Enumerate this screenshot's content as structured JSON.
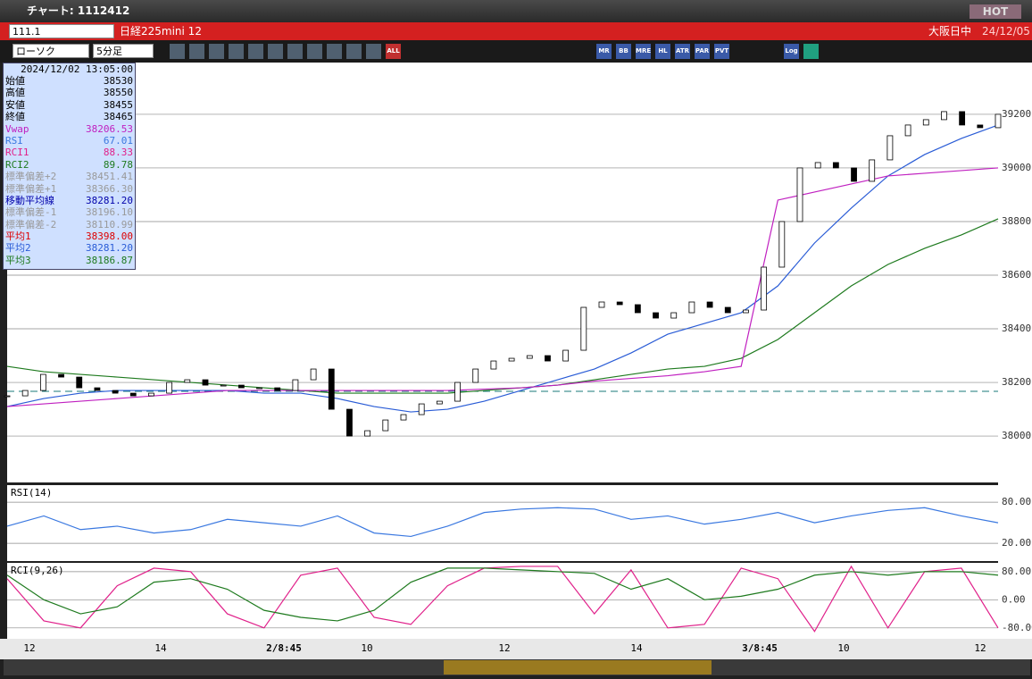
{
  "window": {
    "title": "チャート: 1112412",
    "hot": "HOT"
  },
  "symbol_bar": {
    "code": "111.1",
    "name": "日経225mini 12",
    "market": "大阪日中",
    "date": "24/12/05"
  },
  "toolbar": {
    "chart_type": "ローソク",
    "interval": "5分足",
    "buttons": [
      "ALL",
      "MR",
      "BB",
      "MRE",
      "HL",
      "ATR",
      "PAR",
      "PVT",
      "Log"
    ]
  },
  "info_panel": {
    "datetime": "2024/12/02  13:05:00",
    "rows": [
      [
        "始値",
        "38530"
      ],
      [
        "高値",
        "38550"
      ],
      [
        "安値",
        "38455"
      ],
      [
        "終値",
        "38465"
      ],
      [
        "Vwap",
        "38206.53"
      ],
      [
        "RSI",
        "67.01"
      ],
      [
        "RCI1",
        "88.33"
      ],
      [
        "RCI2",
        "89.78"
      ],
      [
        "標準偏差+2",
        "38451.41"
      ],
      [
        "標準偏差+1",
        "38366.30"
      ],
      [
        "移動平均線",
        "38281.20"
      ],
      [
        "標準偏差-1",
        "38196.10"
      ],
      [
        "標準偏差-2",
        "38110.99"
      ],
      [
        "平均1",
        "38398.00"
      ],
      [
        "平均2",
        "38281.20"
      ],
      [
        "平均3",
        "38186.87"
      ]
    ]
  },
  "price_chart": {
    "type": "candlestick",
    "ylim": [
      37827,
      39393
    ],
    "yticks": [
      38000,
      38200,
      38400,
      38600,
      38800,
      39000,
      39200
    ],
    "close": [
      38150,
      38170,
      38230,
      38220,
      38180,
      38170,
      38160,
      38150,
      38160,
      38200,
      38210,
      38190,
      38190,
      38180,
      38180,
      38170,
      38210,
      38250,
      38100,
      38000,
      38020,
      38060,
      38080,
      38120,
      38130,
      38200,
      38250,
      38280,
      38290,
      38300,
      38280,
      38320,
      38480,
      38500,
      38490,
      38460,
      38440,
      38460,
      38500,
      38480,
      38460,
      38470,
      38630,
      38800,
      39000,
      39020,
      39000,
      38950,
      39030,
      39120,
      39160,
      39180,
      39210,
      39160,
      39150,
      39200
    ],
    "series": [
      {
        "name": "平均2",
        "color": "#2a5cd6",
        "values": [
          38110,
          38140,
          38160,
          38170,
          38170,
          38170,
          38170,
          38160,
          38160,
          38140,
          38110,
          38090,
          38100,
          38130,
          38170,
          38210,
          38250,
          38310,
          38380,
          38420,
          38460,
          38560,
          38720,
          38850,
          38970,
          39050,
          39110,
          39160
        ]
      },
      {
        "name": "平均3",
        "color": "#1e7a1e",
        "values": [
          38260,
          38240,
          38230,
          38220,
          38210,
          38200,
          38190,
          38180,
          38170,
          38160,
          38160,
          38160,
          38160,
          38170,
          38180,
          38190,
          38210,
          38230,
          38250,
          38260,
          38290,
          38360,
          38460,
          38560,
          38640,
          38700,
          38750,
          38810
        ]
      },
      {
        "name": "Vwap",
        "color": "#c020c0",
        "values": [
          38110,
          38120,
          38130,
          38140,
          38150,
          38160,
          38170,
          38170,
          38170,
          38170,
          38170,
          38170,
          38170,
          38175,
          38180,
          38190,
          38205,
          38215,
          38225,
          38240,
          38260,
          38880,
          38910,
          38940,
          38970,
          38980,
          38990,
          39000
        ]
      }
    ]
  },
  "rsi_chart": {
    "type": "line",
    "label": "RSI(14)",
    "ylim": [
      -6,
      105
    ],
    "yticks": [
      {
        "value": 80,
        "label": "80.00"
      },
      {
        "value": 20,
        "label": "20.00"
      }
    ],
    "series": [
      {
        "name": "RSI",
        "color": "#3a78e0",
        "values": [
          45,
          60,
          40,
          45,
          35,
          40,
          55,
          50,
          45,
          60,
          35,
          30,
          45,
          65,
          70,
          72,
          70,
          55,
          60,
          48,
          55,
          65,
          50,
          60,
          68,
          72,
          60,
          50
        ]
      }
    ]
  },
  "rci_chart": {
    "type": "line",
    "label": "RCI(9,26)",
    "ylim": [
      -111,
      105
    ],
    "yticks": [
      {
        "value": 80,
        "label": "80.00"
      },
      {
        "value": 0,
        "label": "0.00"
      },
      {
        "value": -80,
        "label": "-80.00"
      }
    ],
    "series": [
      {
        "name": "RCI1",
        "color": "#e0208a",
        "values": [
          60,
          -60,
          -80,
          40,
          90,
          80,
          -40,
          -80,
          70,
          90,
          -50,
          -70,
          40,
          90,
          95,
          95,
          -40,
          85,
          -80,
          -70,
          90,
          60,
          -90,
          95,
          -80,
          80,
          90,
          -80
        ]
      },
      {
        "name": "RCI2",
        "color": "#1e7a1e",
        "values": [
          70,
          0,
          -40,
          -20,
          50,
          60,
          30,
          -30,
          -50,
          -60,
          -30,
          50,
          90,
          90,
          85,
          80,
          75,
          30,
          60,
          0,
          10,
          30,
          70,
          80,
          70,
          80,
          80,
          70
        ]
      }
    ]
  },
  "x_axis": [
    "12",
    "14",
    "2/8:45",
    "10",
    "12",
    "14",
    "3/8:45",
    "10",
    "12"
  ]
}
